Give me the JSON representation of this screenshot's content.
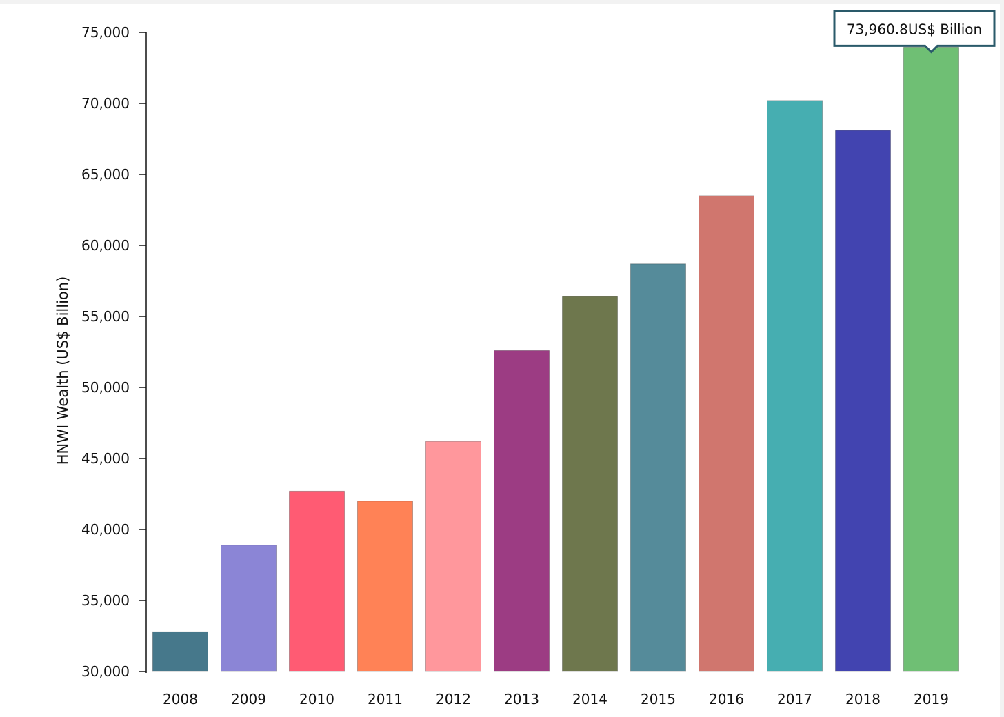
{
  "chart_data": {
    "type": "bar",
    "categories": [
      "2008",
      "2009",
      "2010",
      "2011",
      "2012",
      "2013",
      "2014",
      "2015",
      "2016",
      "2017",
      "2018",
      "2019"
    ],
    "values": [
      32800,
      38900,
      42700,
      42000,
      46200,
      52600,
      56400,
      58700,
      63500,
      70200,
      68100,
      73960.8
    ],
    "colors": [
      "#46788b",
      "#8b85d6",
      "#ff5b73",
      "#ff8256",
      "#ff979c",
      "#9c3c83",
      "#6e774d",
      "#558b9a",
      "#d0766e",
      "#46aeb1",
      "#4244b0",
      "#6fbf74"
    ],
    "title": "",
    "xlabel": "",
    "ylabel": "HNWI Wealth (US$ Billion)",
    "ylim": [
      30000,
      75000
    ],
    "yticks": [
      30000,
      35000,
      40000,
      45000,
      50000,
      55000,
      60000,
      65000,
      70000,
      75000
    ],
    "ytick_labels": [
      "30,000",
      "35,000",
      "40,000",
      "45,000",
      "50,000",
      "55,000",
      "60,000",
      "65,000",
      "70,000",
      "75,000"
    ],
    "grid": false,
    "legend": "none",
    "tooltip": {
      "category": "2019",
      "text": "73,960.8US$ Billion",
      "border_color": "#2a5a6a"
    }
  }
}
